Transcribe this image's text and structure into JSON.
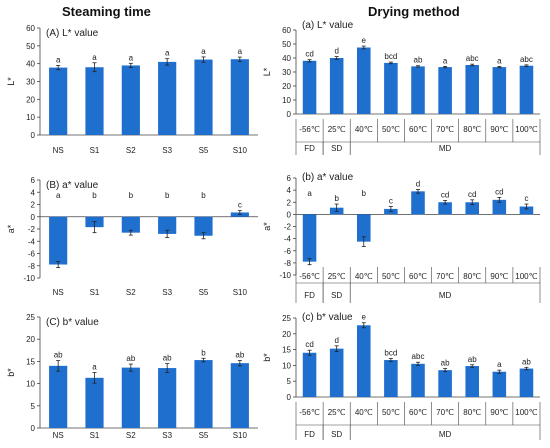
{
  "headers": {
    "left": "Steaming time",
    "right": "Drying method"
  },
  "chart_data": [
    {
      "type": "bar",
      "title": "(A) L* value",
      "ylabel": "L*",
      "ylim": [
        0,
        60
      ],
      "yticks": [
        0,
        10,
        20,
        30,
        40,
        50,
        60
      ],
      "categories": [
        "NS",
        "S1",
        "S2",
        "S3",
        "S5",
        "S10"
      ],
      "values": [
        37.8,
        38.0,
        39.0,
        41.0,
        42.3,
        42.5
      ],
      "errors": [
        1.2,
        2.5,
        1.2,
        1.8,
        1.5,
        1.2
      ],
      "letters": [
        "a",
        "a",
        "a",
        "a",
        "a",
        "a"
      ],
      "color": "#1f6fcf"
    },
    {
      "type": "bar",
      "title": "(B) a* value",
      "ylabel": "a*",
      "ylim": [
        -10,
        6
      ],
      "yticks": [
        6,
        4,
        2,
        0,
        -2,
        -4,
        -6,
        -8,
        -10
      ],
      "categories": [
        "NS",
        "S1",
        "S2",
        "S3",
        "S5",
        "S10"
      ],
      "values": [
        -7.8,
        -1.7,
        -2.6,
        -2.8,
        -3.1,
        0.7
      ],
      "errors": [
        0.5,
        0.9,
        0.4,
        0.6,
        0.5,
        0.3
      ],
      "letters": [
        "a",
        "b",
        "b",
        "b",
        "b",
        "c"
      ],
      "color": "#1f6fcf"
    },
    {
      "type": "bar",
      "title": "(C) b* value",
      "ylabel": "b*",
      "ylim": [
        0,
        25
      ],
      "yticks": [
        0,
        5,
        10,
        15,
        20,
        25
      ],
      "categories": [
        "NS",
        "S1",
        "S2",
        "S3",
        "S5",
        "S10"
      ],
      "values": [
        14.0,
        11.3,
        13.6,
        13.5,
        15.3,
        14.6
      ],
      "errors": [
        1.2,
        1.2,
        0.8,
        1.0,
        0.4,
        0.6
      ],
      "letters": [
        "ab",
        "a",
        "ab",
        "ab",
        "b",
        "ab"
      ],
      "color": "#1f6fcf"
    },
    {
      "type": "bar",
      "title": "(a) L* value",
      "ylabel": "L*",
      "ylim": [
        0,
        60
      ],
      "yticks": [
        0,
        10,
        20,
        30,
        40,
        50,
        60
      ],
      "categories": [
        "-56℃",
        "25℃",
        "40℃",
        "50℃",
        "60℃",
        "70℃",
        "80℃",
        "90℃",
        "100℃"
      ],
      "values": [
        38.0,
        40.0,
        47.5,
        36.5,
        34.0,
        33.5,
        35.0,
        33.5,
        34.5
      ],
      "errors": [
        0.8,
        1.0,
        1.0,
        0.6,
        0.5,
        0.5,
        0.6,
        0.5,
        0.6
      ],
      "letters": [
        "cd",
        "d",
        "e",
        "bcd",
        "ab",
        "a",
        "abc",
        "a",
        "abc"
      ],
      "groups": [
        {
          "label": "FD",
          "span": [
            0,
            0
          ]
        },
        {
          "label": "SD",
          "span": [
            1,
            1
          ]
        },
        {
          "label": "MD",
          "span": [
            2,
            8
          ]
        }
      ],
      "color": "#1f6fcf"
    },
    {
      "type": "bar",
      "title": "(b) a* value",
      "ylabel": "a*",
      "ylim": [
        -10,
        6
      ],
      "yticks": [
        6,
        4,
        2,
        0,
        -2,
        -4,
        -6,
        -8,
        -10
      ],
      "categories": [
        "-56℃",
        "25℃",
        "40℃",
        "50℃",
        "60℃",
        "70℃",
        "80℃",
        "90℃",
        "100℃"
      ],
      "values": [
        -7.8,
        1.1,
        -4.5,
        0.9,
        3.8,
        2.0,
        2.0,
        2.4,
        1.3
      ],
      "errors": [
        0.5,
        0.6,
        0.8,
        0.4,
        0.3,
        0.3,
        0.4,
        0.4,
        0.4
      ],
      "letters": [
        "a",
        "b",
        "b",
        "c",
        "d",
        "cd",
        "cd",
        "cd",
        "c"
      ],
      "groups": [
        {
          "label": "FD",
          "span": [
            0,
            0
          ]
        },
        {
          "label": "SD",
          "span": [
            1,
            1
          ]
        },
        {
          "label": "MD",
          "span": [
            2,
            8
          ]
        }
      ],
      "color": "#1f6fcf"
    },
    {
      "type": "bar",
      "title": "(c) b* value",
      "ylabel": "b*",
      "ylim": [
        0,
        25
      ],
      "yticks": [
        0,
        5,
        10,
        15,
        20,
        25
      ],
      "categories": [
        "-56℃",
        "25℃",
        "40℃",
        "50℃",
        "60℃",
        "70℃",
        "80℃",
        "90℃",
        "100℃"
      ],
      "values": [
        14.0,
        15.3,
        22.7,
        11.7,
        10.5,
        8.5,
        9.8,
        8.0,
        9.0
      ],
      "errors": [
        0.8,
        0.9,
        0.8,
        0.5,
        0.5,
        0.5,
        0.4,
        0.5,
        0.4
      ],
      "letters": [
        "cd",
        "d",
        "e",
        "bcd",
        "abc",
        "ab",
        "ab",
        "a",
        "ab"
      ],
      "groups": [
        {
          "label": "FD",
          "span": [
            0,
            0
          ]
        },
        {
          "label": "SD",
          "span": [
            1,
            1
          ]
        },
        {
          "label": "MD",
          "span": [
            2,
            8
          ]
        }
      ],
      "color": "#1f6fcf"
    }
  ]
}
